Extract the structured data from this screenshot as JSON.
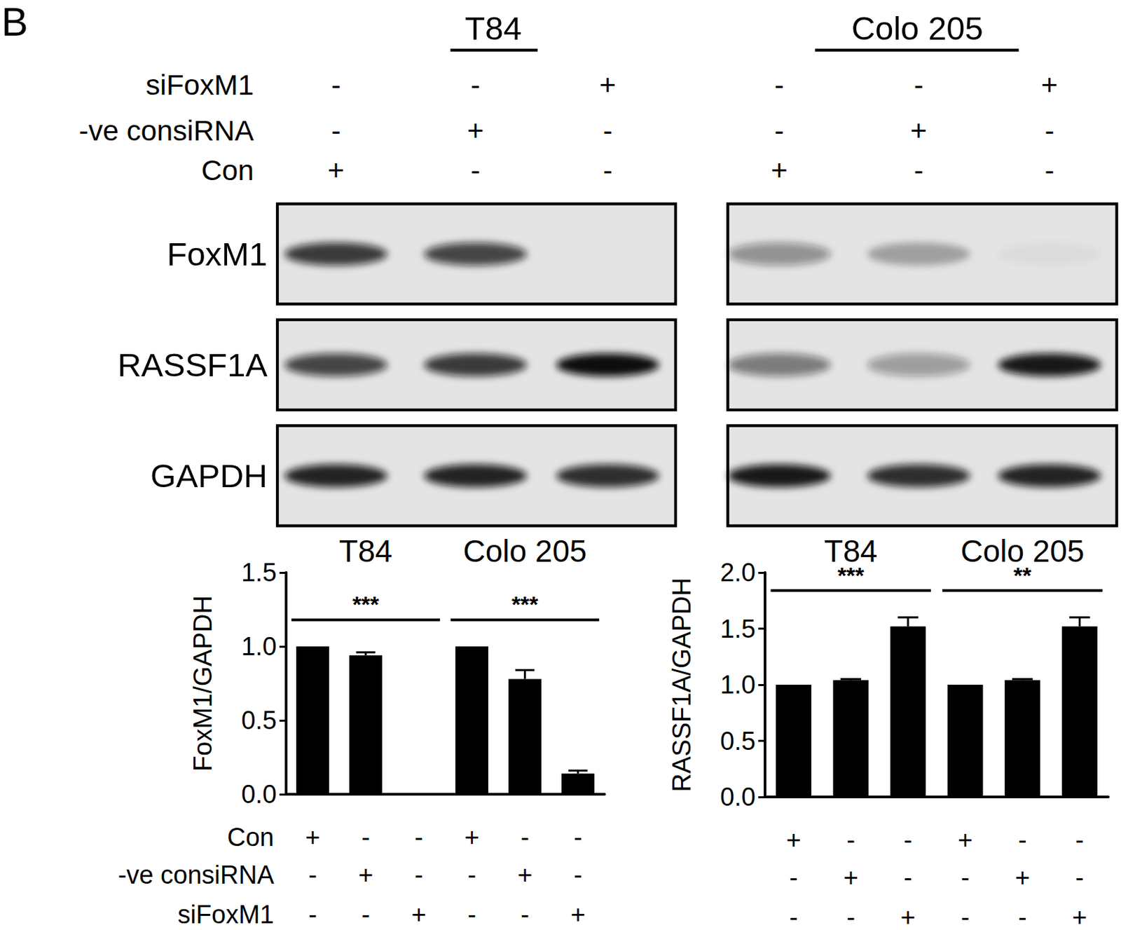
{
  "panel_label": "B",
  "blots": {
    "conditions": [
      "siFoxM1",
      "-ve consiRNA",
      "Con"
    ],
    "proteins": [
      "FoxM1",
      "RASSF1A",
      "GAPDH"
    ],
    "panels": [
      {
        "title": "T84",
        "signs": [
          [
            "-",
            "-",
            "+"
          ],
          [
            "-",
            "+",
            "-"
          ],
          [
            "+",
            "-",
            "-"
          ]
        ],
        "bands": [
          [
            0.8,
            0.75,
            0
          ],
          [
            0.75,
            0.8,
            1
          ],
          [
            0.9,
            0.9,
            0.85
          ]
        ]
      },
      {
        "title": "Colo 205",
        "signs": [
          [
            "-",
            "-",
            "+"
          ],
          [
            "-",
            "+",
            "-"
          ],
          [
            "+",
            "-",
            "-"
          ]
        ],
        "bands": [
          [
            0.4,
            0.3,
            0.04
          ],
          [
            0.5,
            0.35,
            0.95
          ],
          [
            0.95,
            0.85,
            0.9
          ]
        ]
      }
    ]
  },
  "chart_data": [
    {
      "type": "bar",
      "y_label": "FoxM1/GAPDH",
      "categories": [
        null,
        null,
        null,
        null,
        null,
        null
      ],
      "values": [
        1.0,
        0.94,
        0,
        1.0,
        0.78,
        0.14
      ],
      "errors": [
        0,
        0.02,
        0,
        0,
        0.06,
        0.02
      ],
      "color": "#000000",
      "ylim": [
        0,
        1.5
      ],
      "yticks": [
        {
          "value": 0,
          "label": "0.0"
        },
        0.5,
        {
          "value": 1,
          "label": "1.0"
        },
        1.5
      ],
      "grid": false,
      "groups": [
        {
          "label": "T84",
          "significance": "***"
        },
        {
          "label": "Colo 205",
          "significance": "***"
        }
      ],
      "conditions": [
        {
          "name": "Con",
          "signs": [
            "+",
            "-",
            "-",
            "+",
            "-",
            "-"
          ]
        },
        {
          "name": "-ve consiRNA",
          "signs": [
            "-",
            "+",
            "-",
            "-",
            "+",
            "-"
          ]
        },
        {
          "name": "siFoxM1",
          "signs": [
            "-",
            "-",
            "+",
            "-",
            "-",
            "+"
          ]
        }
      ]
    },
    {
      "type": "bar",
      "y_label": "RASSF1A/GAPDH",
      "categories": [
        null,
        null,
        null,
        null,
        null,
        null
      ],
      "values": [
        1.0,
        1.04,
        1.52,
        1.0,
        1.04,
        1.52
      ],
      "errors": [
        0,
        0.01,
        0.08,
        0,
        0.01,
        0.08
      ],
      "color": "#000000",
      "ylim": [
        0,
        2.0
      ],
      "yticks": [
        {
          "value": 0,
          "label": "0.0"
        },
        0.5,
        {
          "value": 1,
          "label": "1.0"
        },
        1.5,
        {
          "value": 2,
          "label": "2.0"
        }
      ],
      "grid": false,
      "groups": [
        {
          "label": "T84",
          "significance": "***"
        },
        {
          "label": "Colo 205",
          "significance": "**"
        }
      ],
      "conditions": [
        {
          "signs": [
            "+",
            "-",
            "-",
            "+",
            "-",
            "-"
          ]
        },
        {
          "signs": [
            "-",
            "+",
            "-",
            "-",
            "+",
            "-"
          ]
        },
        {
          "signs": [
            "-",
            "-",
            "+",
            "-",
            "-",
            "+"
          ]
        }
      ]
    }
  ]
}
